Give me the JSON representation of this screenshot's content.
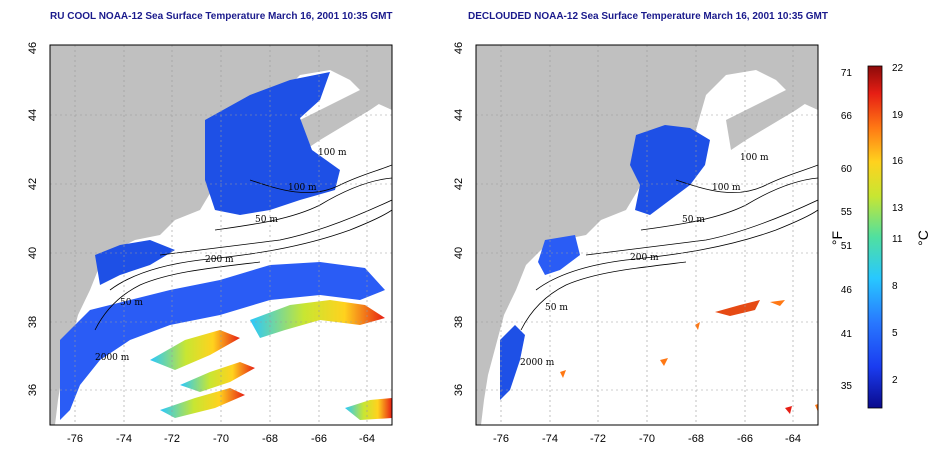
{
  "titles": {
    "left": "RU COOL NOAA-12 Sea Surface Temperature March 16, 2001 10:35 GMT",
    "right": "DECLOUDED NOAA-12 Sea Surface Temperature March 16, 2001 10:35 GMT"
  },
  "axes": {
    "x_ticks": [
      "-76",
      "-74",
      "-72",
      "-70",
      "-68",
      "-66",
      "-64"
    ],
    "y_ticks": [
      "36",
      "38",
      "40",
      "42",
      "44",
      "46"
    ],
    "x_range": [
      -77,
      -63
    ],
    "y_range": [
      35,
      46
    ]
  },
  "contour_labels_left": [
    "100 m",
    "100 m",
    "50 m",
    "200 m",
    "50 m",
    "2000 m"
  ],
  "contour_labels_right": [
    "100 m",
    "100 m",
    "50 m",
    "200 m",
    "50 m",
    "2000 m"
  ],
  "colorbar": {
    "fahrenheit_label": "°F",
    "celsius_label": "°C",
    "fahrenheit_ticks": [
      "71",
      "66",
      "60",
      "55",
      "51",
      "46",
      "41",
      "35"
    ],
    "celsius_ticks": [
      "22",
      "19",
      "16",
      "13",
      "11",
      "8",
      "5",
      "2"
    ],
    "colors": [
      "#0a0a8c",
      "#1a3cf0",
      "#2878ff",
      "#28c8ff",
      "#50e0a0",
      "#c8e632",
      "#ffd21e",
      "#ff7814",
      "#e61e14",
      "#8c0a0a"
    ]
  },
  "colors": {
    "land": "#c0c0c0",
    "cold_water": "#1e50e6",
    "cloud": "#ffffff",
    "title": "#1a1a8c"
  }
}
